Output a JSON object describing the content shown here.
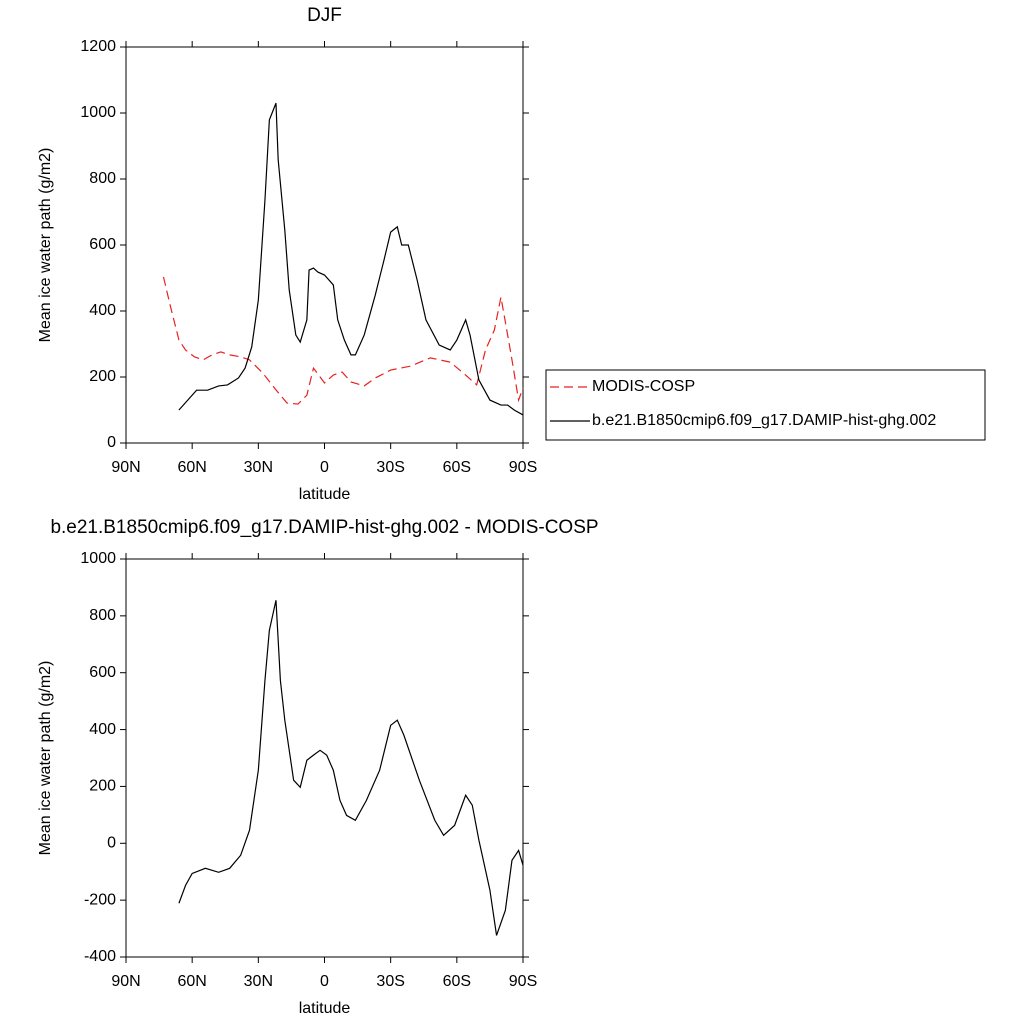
{
  "chart_data": [
    {
      "type": "line",
      "title": "DJF",
      "x_label": "latitude",
      "y_label": "Mean ice water path (g/m2)",
      "xlim": [
        90,
        -90
      ],
      "xticks": [
        {
          "value": 90,
          "label": "90N"
        },
        {
          "value": 60,
          "label": "60N"
        },
        {
          "value": 30,
          "label": "30N"
        },
        0,
        {
          "value": -30,
          "label": "30S"
        },
        {
          "value": -60,
          "label": "60S"
        },
        {
          "value": -90,
          "label": "90S"
        }
      ],
      "ylim": [
        0,
        1200
      ],
      "yticks": [
        0,
        200,
        400,
        600,
        800,
        1000,
        1200
      ],
      "series": [
        {
          "name": "MODIS-COSP",
          "color": "#e8221f",
          "dash": true,
          "x": [
            73,
            70,
            66,
            63,
            59,
            55,
            51,
            47,
            43,
            38,
            34,
            28,
            22,
            17,
            12,
            8,
            5,
            0,
            -4,
            -8,
            -12,
            -18,
            -23,
            -30,
            -39,
            -48,
            -57,
            -64,
            -69,
            -73,
            -77,
            -80,
            -82,
            -85,
            -88,
            -90
          ],
          "values": [
            503,
            418,
            312,
            282,
            261,
            252,
            267,
            276,
            267,
            261,
            252,
            212,
            161,
            121,
            118,
            145,
            227,
            182,
            206,
            215,
            185,
            173,
            197,
            221,
            233,
            258,
            245,
            206,
            176,
            282,
            342,
            442,
            367,
            252,
            130,
            167
          ]
        },
        {
          "name": "b.e21.B1850cmip6.f09_g17.DAMIP-hist-ghg.002",
          "color": "#000000",
          "dash": false,
          "x": [
            66,
            62,
            58,
            53,
            48,
            44,
            39,
            36,
            33,
            30,
            27,
            25,
            22,
            21,
            18,
            16,
            13,
            11,
            8,
            7,
            5,
            3,
            0,
            -4,
            -6,
            -9,
            -12,
            -14,
            -18,
            -23,
            -27,
            -30,
            -33,
            -35,
            -38,
            -42,
            -46,
            -52,
            -57,
            -60,
            -64,
            -66,
            -70,
            -75,
            -80,
            -83,
            -86,
            -90
          ],
          "values": [
            100,
            130,
            160,
            160,
            173,
            176,
            197,
            227,
            291,
            433,
            736,
            979,
            1030,
            858,
            645,
            464,
            327,
            306,
            373,
            524,
            530,
            518,
            509,
            479,
            373,
            312,
            267,
            267,
            327,
            448,
            555,
            639,
            655,
            600,
            600,
            494,
            373,
            297,
            282,
            312,
            373,
            327,
            191,
            130,
            115,
            115,
            100,
            85
          ]
        }
      ]
    },
    {
      "type": "line",
      "title": "b.e21.B1850cmip6.f09_g17.DAMIP-hist-ghg.002 - MODIS-COSP",
      "x_label": "latitude",
      "y_label": "Mean ice water path (g/m2)",
      "xlim": [
        90,
        -90
      ],
      "xticks": [
        {
          "value": 90,
          "label": "90N"
        },
        {
          "value": 60,
          "label": "60N"
        },
        {
          "value": 30,
          "label": "30N"
        },
        0,
        {
          "value": -30,
          "label": "30S"
        },
        {
          "value": -60,
          "label": "60S"
        },
        {
          "value": -90,
          "label": "90S"
        }
      ],
      "ylim": [
        -400,
        1000
      ],
      "yticks": [
        -400,
        -200,
        0,
        200,
        400,
        600,
        800,
        1000
      ],
      "series": [
        {
          "color": "#000000",
          "dash": false,
          "x": [
            66,
            63,
            60,
            54,
            48,
            43,
            38,
            34,
            30,
            27,
            25,
            22,
            20,
            18,
            14,
            11,
            8,
            5,
            2,
            -1,
            -4,
            -7,
            -10,
            -14,
            -19,
            -25,
            -30,
            -33,
            -36,
            -43,
            -50,
            -54,
            -59,
            -64,
            -67,
            -70,
            -75,
            -78,
            -82,
            -85,
            -88,
            -90
          ],
          "values": [
            -211,
            -148,
            -106,
            -88,
            -102,
            -88,
            -42,
            46,
            257,
            573,
            749,
            855,
            573,
            433,
            222,
            197,
            292,
            310,
            327,
            310,
            257,
            151,
            98,
            81,
            151,
            257,
            415,
            433,
            380,
            222,
            81,
            28,
            63,
            169,
            134,
            11,
            -165,
            -324,
            -236,
            -60,
            -25,
            -77
          ]
        }
      ]
    }
  ]
}
